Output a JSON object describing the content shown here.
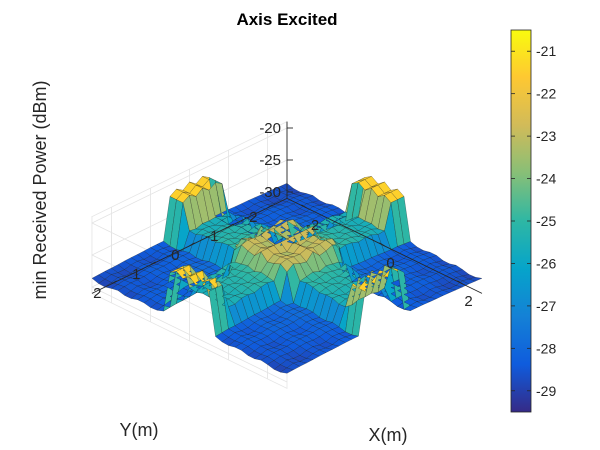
{
  "chart_data": {
    "type": "surface3d",
    "title": "Axis Excited",
    "xlabel": "X(m)",
    "ylabel": "Y(m)",
    "zlabel": "min Received Power (dBm)",
    "xlim": [
      -2.5,
      2.5
    ],
    "ylim": [
      -2.5,
      2.5
    ],
    "zlim": [
      -31,
      -19
    ],
    "x_ticks": [
      "-2",
      "0",
      "2"
    ],
    "y_ticks": [
      "-2",
      "-1",
      "0",
      "1",
      "2"
    ],
    "z_ticks": [
      "-20",
      "-25",
      "-30"
    ],
    "grid": true,
    "colormap": "parula",
    "color_range": [
      -29.5,
      -20.5
    ],
    "colorbar": {
      "placement": "right",
      "ticks": [
        "-21",
        "-22",
        "-23",
        "-24",
        "-25",
        "-26",
        "-27",
        "-28",
        "-29"
      ],
      "tick_values": [
        -21,
        -22,
        -23,
        -24,
        -25,
        -26,
        -27,
        -28,
        -29
      ]
    },
    "surface_regions": [
      {
        "region": "center plateau",
        "x": [
          -0.8,
          0.8
        ],
        "y": [
          -0.8,
          0.8
        ],
        "z": -22.5
      },
      {
        "region": "+x edge panel",
        "x": [
          2.0,
          2.5
        ],
        "y": [
          -0.6,
          0.6
        ],
        "z": -21
      },
      {
        "region": "-x edge panel",
        "x": [
          -2.5,
          -2.0
        ],
        "y": [
          -0.6,
          0.6
        ],
        "z": -21
      },
      {
        "region": "+y edge panel",
        "x": [
          -0.6,
          0.6
        ],
        "y": [
          2.0,
          2.5
        ],
        "z": -21
      },
      {
        "region": "-y edge panel",
        "x": [
          -0.6,
          0.6
        ],
        "y": [
          -2.5,
          -2.0
        ],
        "z": -21
      },
      {
        "region": "corner sectors",
        "x": [
          -2.5,
          2.5
        ],
        "y": [
          -2.5,
          2.5
        ],
        "z": -29
      }
    ]
  }
}
